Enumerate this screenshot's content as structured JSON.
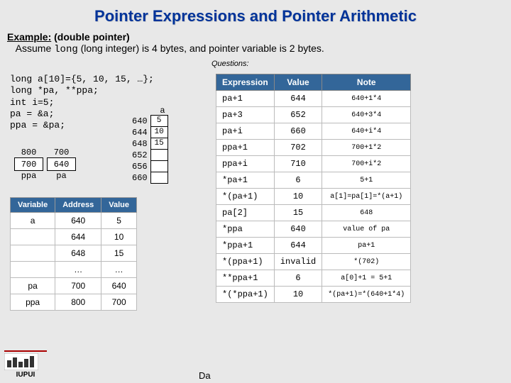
{
  "title": "Pointer Expressions and Pointer Arithmetic",
  "example_label": "Example:",
  "example_rest": " (double pointer)",
  "assume_pre": "Assume ",
  "assume_long": "long",
  "assume_post": " (long integer) is 4 bytes, and pointer variable is 2 bytes.",
  "questions_label": "Questions:",
  "code": {
    "l1": "long a[10]={5, 10, 15, …};",
    "l2": "long *pa, **ppa;",
    "l3": "int i=5;",
    "l4": "pa = &a;",
    "l5": "ppa = &pa;"
  },
  "mem_a": {
    "label": "a",
    "rows": [
      {
        "addr": "640",
        "val": "5"
      },
      {
        "addr": "644",
        "val": "10"
      },
      {
        "addr": "648",
        "val": "15"
      },
      {
        "addr": "652",
        "val": ""
      },
      {
        "addr": "656",
        "val": ""
      },
      {
        "addr": "660",
        "val": ""
      }
    ]
  },
  "ptr_boxes": {
    "ppa_addr": "800",
    "pa_addr": "700",
    "ppa_val": "700",
    "pa_val": "640",
    "ppa_lbl": "ppa",
    "pa_lbl": "pa"
  },
  "vartable": {
    "headers": [
      "Variable",
      "Address",
      "Value"
    ],
    "rows": [
      [
        "a",
        "640",
        "5"
      ],
      [
        "",
        "644",
        "10"
      ],
      [
        "",
        "648",
        "15"
      ],
      [
        "",
        "…",
        "…"
      ],
      [
        "pa",
        "700",
        "640"
      ],
      [
        "ppa",
        "800",
        "700"
      ]
    ]
  },
  "qtable": {
    "headers": [
      "Expression",
      "Value",
      "Note"
    ],
    "rows": [
      [
        "pa+1",
        "644",
        "640+1*4"
      ],
      [
        "pa+3",
        "652",
        "640+3*4"
      ],
      [
        "pa+i",
        "660",
        "640+i*4"
      ],
      [
        "ppa+1",
        "702",
        "700+1*2"
      ],
      [
        "ppa+i",
        "710",
        "700+i*2"
      ],
      [
        "*pa+1",
        "6",
        "5+1"
      ],
      [
        "*(pa+1)",
        "10",
        "a[1]=pa[1]=*(a+1)"
      ],
      [
        "pa[2]",
        "15",
        "648"
      ],
      [
        "*ppa",
        "640",
        "value of pa"
      ],
      [
        "*ppa+1",
        "644",
        "pa+1"
      ],
      [
        "*(ppa+1)",
        "invalid",
        "*(702)"
      ],
      [
        "**ppa+1",
        "6",
        "a[0]+1 = 5+1"
      ],
      [
        "*(*ppa+1)",
        "10",
        "*(pa+1)=*(640+1*4)"
      ]
    ]
  },
  "iupui": "IUPUI",
  "dale": "Da"
}
